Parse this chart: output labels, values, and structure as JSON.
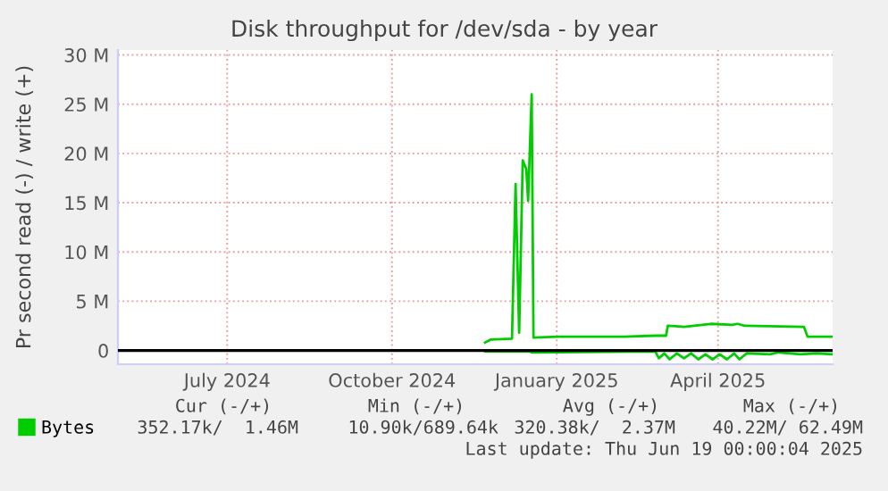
{
  "chart_data": {
    "type": "line",
    "title": "Disk throughput for /dev/sda - by year",
    "ylabel": "Pr second read (-) / write (+)",
    "xlim": [
      "2024-05-16",
      "2025-06-19"
    ],
    "ylim": [
      -1.4,
      30.5
    ],
    "xticks": [
      {
        "value": "2024-07-16",
        "label": "July 2024"
      },
      {
        "value": "2024-10-16",
        "label": "October 2024"
      },
      {
        "value": "2025-01-16",
        "label": "January 2025"
      },
      {
        "value": "2025-04-16",
        "label": "April 2025"
      }
    ],
    "yticks": [
      0,
      {
        "value": 5,
        "label": "5 M"
      },
      {
        "value": 10,
        "label": "10 M"
      },
      {
        "value": 15,
        "label": "15 M"
      },
      {
        "value": 20,
        "label": "20 M"
      },
      {
        "value": 25,
        "label": "25 M"
      },
      {
        "value": 30,
        "label": "30 M"
      }
    ],
    "grid": true,
    "legend": "bottom",
    "marker": "none",
    "line_style": "solid",
    "ref_lines": [
      {
        "axis": "y",
        "value": 0,
        "color": "#000000"
      }
    ],
    "series": [
      {
        "name": "Bytes",
        "color": "#00cc00",
        "x": [
          "2024-12-07",
          "2024-12-10",
          "2024-12-22",
          "2024-12-24",
          "2024-12-26",
          "2024-12-28",
          "2024-12-30",
          "2024-12-31",
          "2025-01-02",
          "2025-01-03",
          "2025-01-17",
          "2025-02-06",
          "2025-02-23",
          "2025-03-12",
          "2025-03-18",
          "2025-03-19",
          "2025-03-28",
          "2025-04-12",
          "2025-04-24",
          "2025-04-27",
          "2025-05-01",
          "2025-06-03",
          "2025-06-05",
          "2025-06-19"
        ],
        "values": [
          0.8,
          1.1,
          1.2,
          16.9,
          1.8,
          19.3,
          18.4,
          15.2,
          26.0,
          1.3,
          1.4,
          1.4,
          1.4,
          1.5,
          1.5,
          2.5,
          2.4,
          2.7,
          2.6,
          2.7,
          2.5,
          2.4,
          1.4,
          1.4
        ]
      },
      {
        "color": "#00cc00",
        "x": [
          "2024-12-07",
          "2025-01-01",
          "2025-01-02",
          "2025-03-12",
          "2025-03-14",
          "2025-03-17",
          "2025-03-20",
          "2025-03-24",
          "2025-03-28",
          "2025-04-01",
          "2025-04-05",
          "2025-04-09",
          "2025-04-13",
          "2025-04-17",
          "2025-04-21",
          "2025-04-25",
          "2025-04-28",
          "2025-05-02",
          "2025-05-15",
          "2025-05-20",
          "2025-06-01",
          "2025-06-10",
          "2025-06-19"
        ],
        "values": [
          -0.1,
          -0.1,
          -0.2,
          -0.1,
          -0.8,
          -0.3,
          -0.9,
          -0.3,
          -0.8,
          -0.3,
          -0.9,
          -0.4,
          -0.9,
          -0.4,
          -0.9,
          -0.3,
          -0.9,
          -0.3,
          -0.4,
          -0.2,
          -0.4,
          -0.3,
          -0.4
        ]
      }
    ],
    "annotations": [
      "Cur (-/+)",
      "Min (-/+)",
      "Avg (-/+)",
      "Max (-/+)",
      "352.17k/  1.46M",
      "10.90k/689.64k",
      "320.38k/  2.37M",
      "40.22M/ 62.49M",
      "Last update: Thu Jun 19 00:00:04 2025"
    ]
  }
}
